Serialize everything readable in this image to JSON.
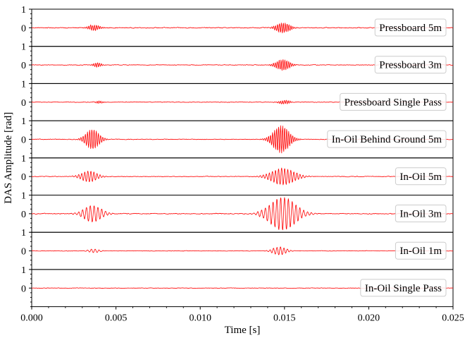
{
  "chart_data": {
    "type": "line",
    "xlabel": "Time [s]",
    "ylabel": "DAS Amplitude [rad]",
    "xlim": [
      0,
      0.025
    ],
    "ylim": [
      -1,
      1
    ],
    "x_ticks": [
      "0.000",
      "0.005",
      "0.010",
      "0.015",
      "0.020",
      "0.025"
    ],
    "x_tick_values": [
      0,
      0.005,
      0.01,
      0.015,
      0.02,
      0.025
    ],
    "y_ticks": [
      "0",
      "1"
    ],
    "y_tick_values": [
      0,
      1
    ],
    "grid": false,
    "legend_placement": "right",
    "series_color": "#ff0000",
    "series": [
      {
        "name": "Pressboard 5m",
        "noise": 0.04,
        "bursts": [
          {
            "t": 0.0037,
            "amp": 0.16,
            "width": 0.0004,
            "freq": 4000
          },
          {
            "t": 0.0149,
            "amp": 0.28,
            "width": 0.0005,
            "freq": 4000
          }
        ]
      },
      {
        "name": "Pressboard 3m",
        "noise": 0.03,
        "bursts": [
          {
            "t": 0.0039,
            "amp": 0.12,
            "width": 0.0003,
            "freq": 4000
          },
          {
            "t": 0.0149,
            "amp": 0.3,
            "width": 0.0005,
            "freq": 4000
          }
        ]
      },
      {
        "name": "Pressboard Single Pass",
        "noise": 0.03,
        "bursts": [
          {
            "t": 0.004,
            "amp": 0.06,
            "width": 0.0003,
            "freq": 4000
          },
          {
            "t": 0.015,
            "amp": 0.1,
            "width": 0.0004,
            "freq": 4000
          }
        ]
      },
      {
        "name": "In-Oil Behind Ground 5m",
        "noise": 0.03,
        "bursts": [
          {
            "t": 0.0036,
            "amp": 0.55,
            "width": 0.0005,
            "freq": 3500
          },
          {
            "t": 0.0148,
            "amp": 0.75,
            "width": 0.0006,
            "freq": 3800
          }
        ]
      },
      {
        "name": "In-Oil 5m",
        "noise": 0.03,
        "bursts": [
          {
            "t": 0.0034,
            "amp": 0.3,
            "width": 0.0006,
            "freq": 2500
          },
          {
            "t": 0.0149,
            "amp": 0.45,
            "width": 0.0009,
            "freq": 2500
          }
        ]
      },
      {
        "name": "In-Oil 3m",
        "noise": 0.04,
        "bursts": [
          {
            "t": 0.0036,
            "amp": 0.45,
            "width": 0.0007,
            "freq": 2000
          },
          {
            "t": 0.0149,
            "amp": 0.9,
            "width": 0.001,
            "freq": 2000
          }
        ]
      },
      {
        "name": "In-Oil 1m",
        "noise": 0.025,
        "bursts": [
          {
            "t": 0.0037,
            "amp": 0.1,
            "width": 0.0004,
            "freq": 2000
          },
          {
            "t": 0.0147,
            "amp": 0.22,
            "width": 0.0005,
            "freq": 2200
          }
        ]
      },
      {
        "name": "In-Oil Single Pass",
        "noise": 0.025,
        "bursts": []
      }
    ]
  }
}
